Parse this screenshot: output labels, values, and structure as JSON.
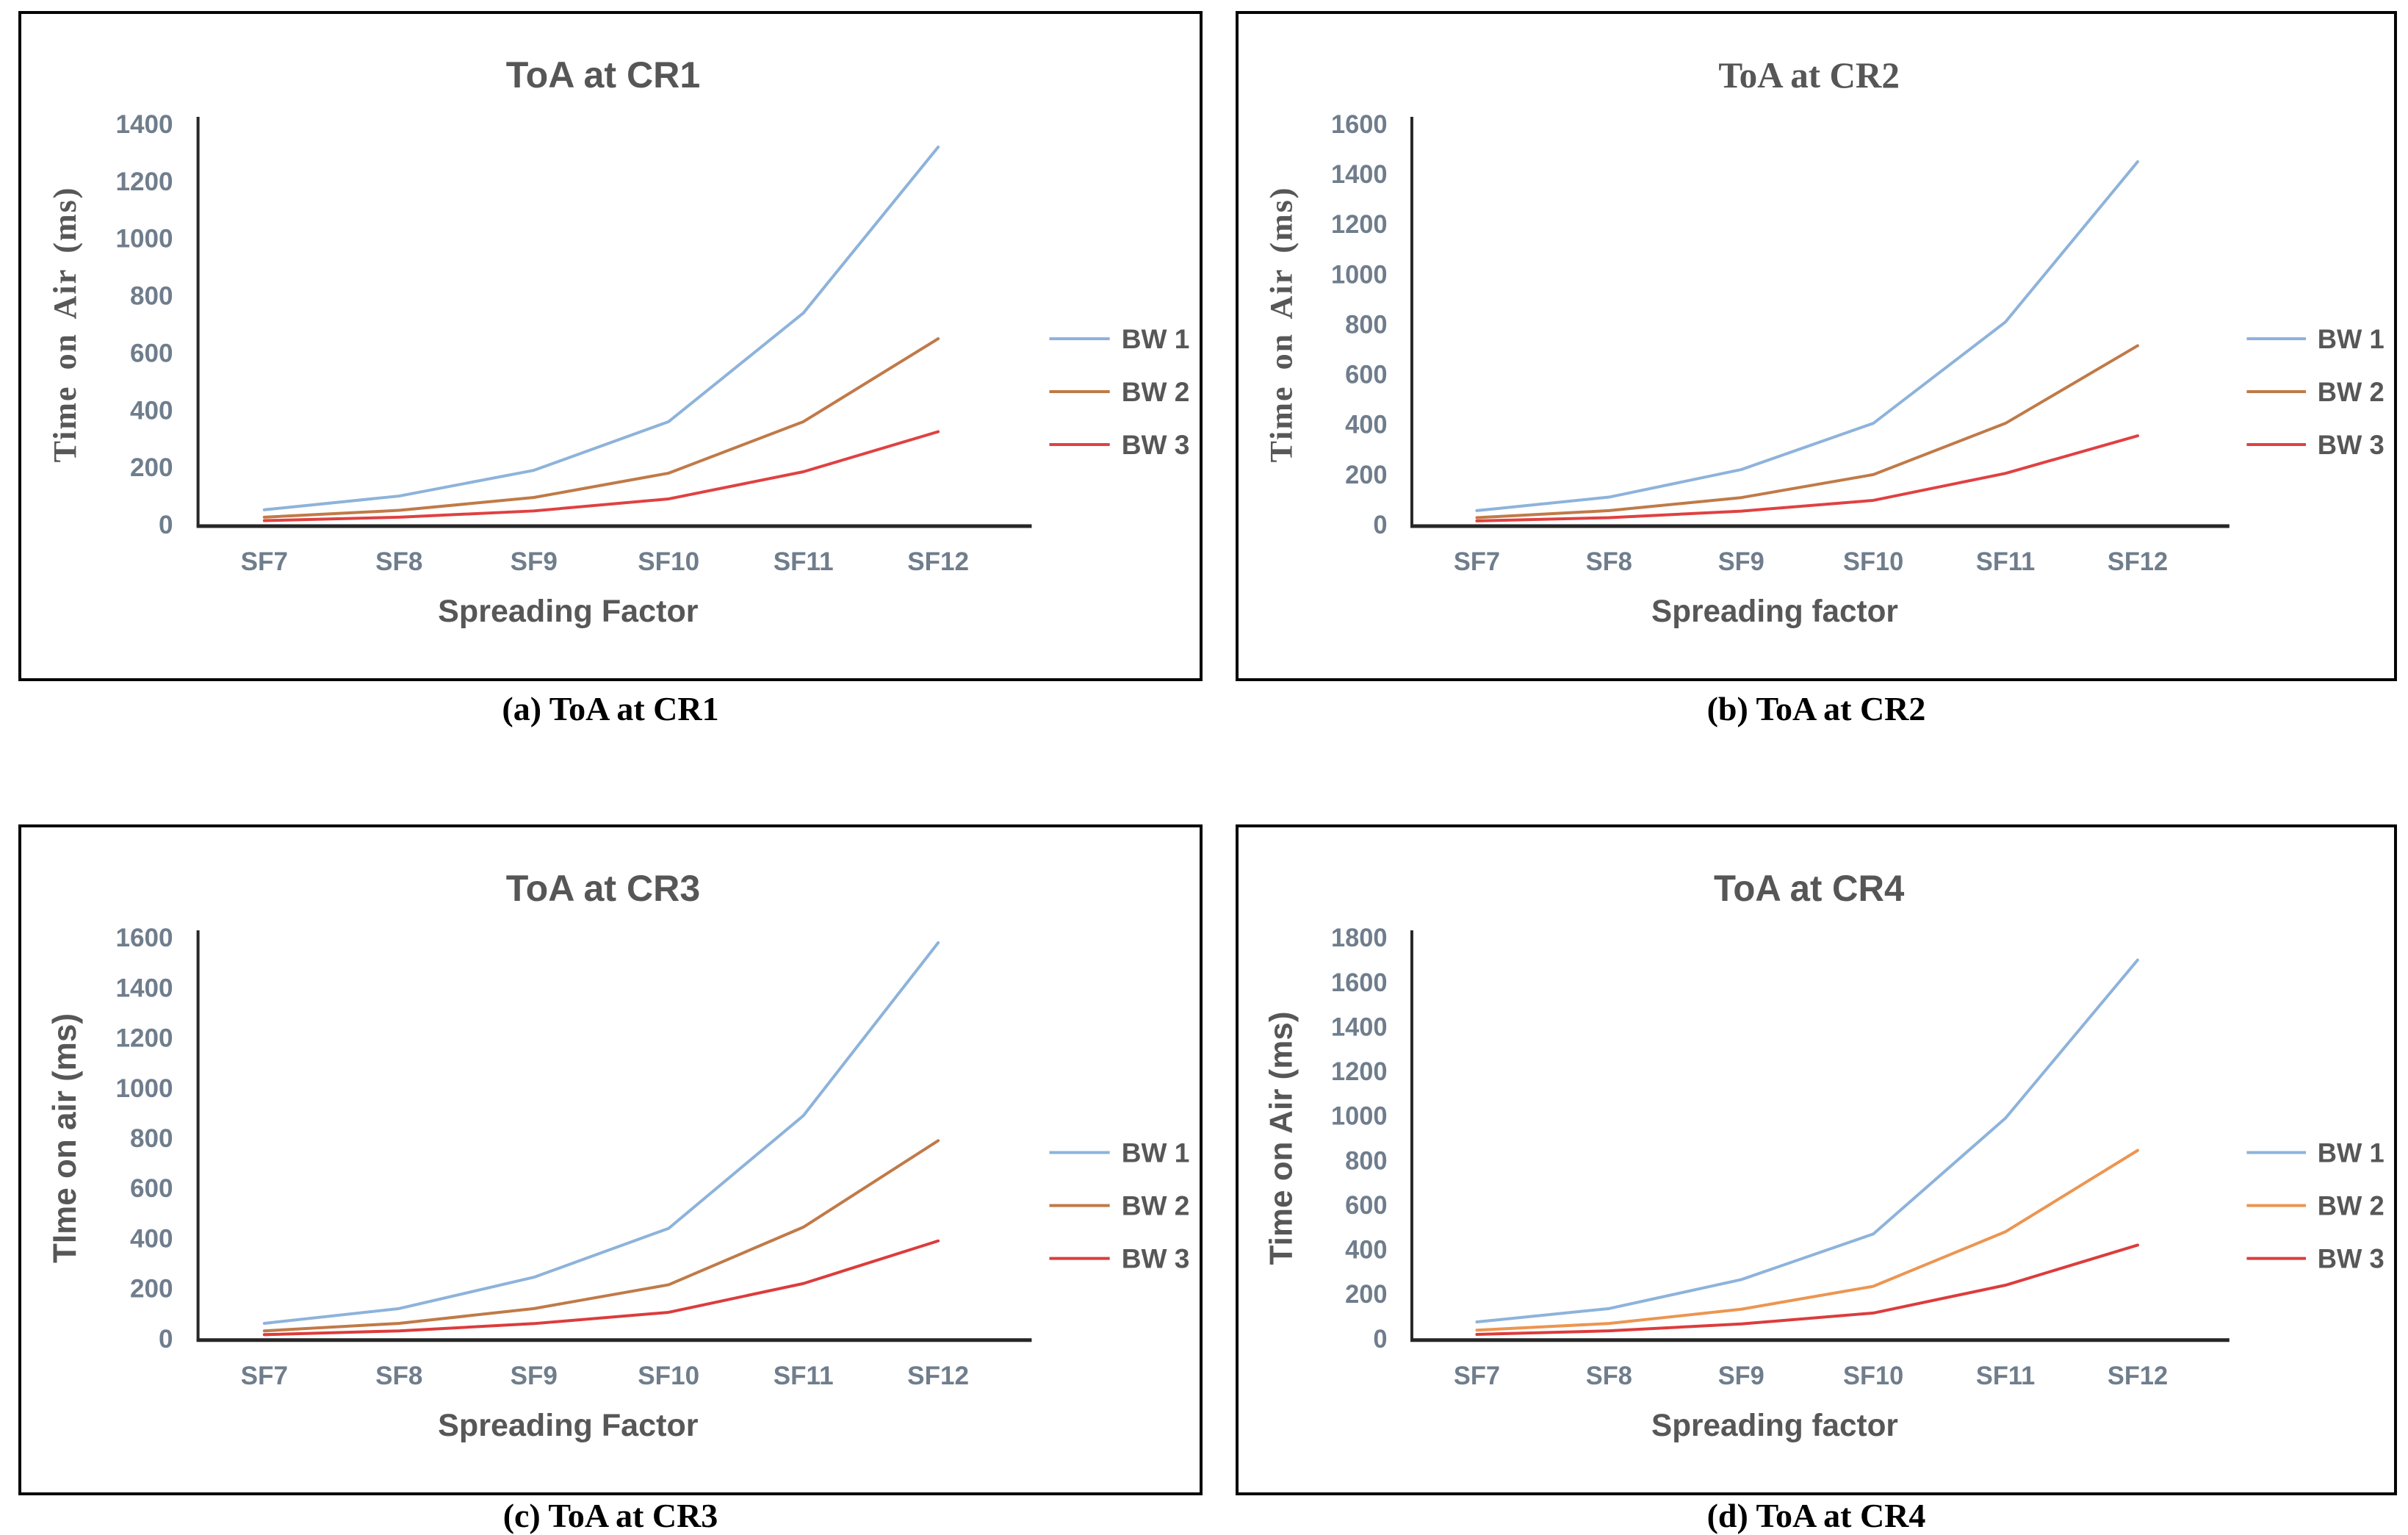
{
  "page": {
    "background": "#ffffff",
    "frame_color": "#050505",
    "axis_color": "#262626",
    "tick_color": "#6f7d8c",
    "label_color": "#575757",
    "caption_color": "#000000"
  },
  "chart_data": [
    {
      "type": "line",
      "title": "ToA at CR1",
      "title_style": "sans",
      "caption": "(a) ToA at CR1",
      "xlabel": "Spreading Factor",
      "ylabel": "Time on Air (ms)",
      "ylabel_style": "serif",
      "ylim": [
        0,
        1400
      ],
      "ytick_step": 200,
      "grid": false,
      "legend_position": "right",
      "categories": [
        "SF7",
        "SF8",
        "SF9",
        "SF10",
        "SF11",
        "SF12"
      ],
      "series": [
        {
          "name": "BW 1",
          "color": "#8DB3DB",
          "values": [
            52,
            100,
            190,
            360,
            740,
            1320
          ]
        },
        {
          "name": "BW 2",
          "color": "#C07A48",
          "values": [
            26,
            50,
            95,
            180,
            360,
            650
          ]
        },
        {
          "name": "BW 3",
          "color": "#E04141",
          "values": [
            14,
            26,
            48,
            90,
            185,
            325
          ]
        }
      ]
    },
    {
      "type": "line",
      "title": "ToA at CR2",
      "title_style": "serif",
      "caption": "(b) ToA at CR2",
      "xlabel": "Spreading factor",
      "ylabel": "Time on Air (ms)",
      "ylabel_style": "serif",
      "ylim": [
        0,
        1600
      ],
      "ytick_step": 200,
      "grid": false,
      "legend_position": "right",
      "categories": [
        "SF7",
        "SF8",
        "SF9",
        "SF10",
        "SF11",
        "SF12"
      ],
      "series": [
        {
          "name": "BW 1",
          "color": "#8DB3DB",
          "values": [
            56,
            110,
            220,
            405,
            810,
            1450
          ]
        },
        {
          "name": "BW 2",
          "color": "#C07A48",
          "values": [
            28,
            56,
            108,
            200,
            405,
            715
          ]
        },
        {
          "name": "BW 3",
          "color": "#E04141",
          "values": [
            15,
            28,
            54,
            97,
            205,
            355
          ]
        }
      ]
    },
    {
      "type": "line",
      "title": "ToA at CR3",
      "title_style": "sans",
      "caption": "(c) ToA at CR3",
      "xlabel": "Spreading Factor",
      "ylabel": "TIme on air (ms)",
      "ylabel_style": "sans",
      "ylim": [
        0,
        1600
      ],
      "ytick_step": 200,
      "grid": false,
      "legend_position": "right",
      "categories": [
        "SF7",
        "SF8",
        "SF9",
        "SF10",
        "SF11",
        "SF12"
      ],
      "series": [
        {
          "name": "BW 1",
          "color": "#8DB3DB",
          "values": [
            61,
            120,
            245,
            440,
            890,
            1580
          ]
        },
        {
          "name": "BW 2",
          "color": "#C07A48",
          "values": [
            31,
            61,
            120,
            215,
            445,
            790
          ]
        },
        {
          "name": "BW 3",
          "color": "#DC3C3C",
          "values": [
            16,
            31,
            60,
            105,
            220,
            390
          ]
        }
      ]
    },
    {
      "type": "line",
      "title": "ToA at CR4",
      "title_style": "sans",
      "caption": "(d) ToA at CR4",
      "xlabel": "Spreading factor",
      "ylabel": "Time on Air (ms)",
      "ylabel_style": "sans",
      "ylim": [
        0,
        1800
      ],
      "ytick_step": 200,
      "grid": false,
      "legend_position": "right",
      "categories": [
        "SF7",
        "SF8",
        "SF9",
        "SF10",
        "SF11",
        "SF12"
      ],
      "series": [
        {
          "name": "BW 1",
          "color": "#8DB3DB",
          "values": [
            75,
            135,
            265,
            470,
            990,
            1700
          ]
        },
        {
          "name": "BW 2",
          "color": "#EC9551",
          "values": [
            38,
            68,
            132,
            235,
            480,
            845
          ]
        },
        {
          "name": "BW 3",
          "color": "#DC3C3C",
          "values": [
            19,
            35,
            66,
            115,
            240,
            420
          ]
        }
      ]
    }
  ]
}
